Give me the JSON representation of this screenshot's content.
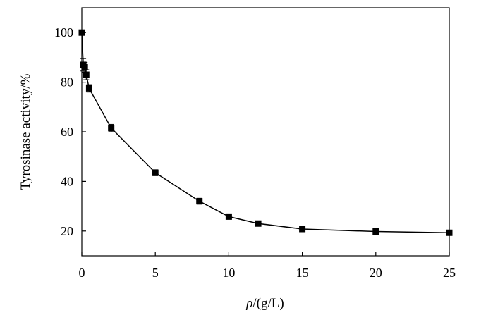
{
  "chart_data": {
    "type": "line",
    "title": "",
    "xlabel_italic": "ρ",
    "xlabel_rest": "/(g/L)",
    "ylabel": "Tyrosinase activity/%",
    "xlim": [
      0,
      25
    ],
    "ylim": [
      10,
      110
    ],
    "xticks": [
      0,
      5,
      10,
      15,
      20,
      25
    ],
    "yticks": [
      20,
      40,
      60,
      80,
      100
    ],
    "grid": false,
    "legend": "none",
    "series": [
      {
        "x": [
          0,
          0.1,
          0.2,
          0.3,
          0.5,
          2,
          5,
          8,
          10,
          12,
          15,
          20,
          25
        ],
        "y": [
          100,
          87,
          86,
          83,
          77.5,
          61.5,
          43.5,
          32,
          25.8,
          23,
          20.8,
          19.8,
          19.3
        ],
        "err": [
          0,
          2.5,
          2,
          2,
          1.5,
          1.5,
          1.2,
          1.2,
          1,
          0.8,
          0.6,
          0.5,
          0.5
        ]
      }
    ],
    "colors": {
      "line": "#000000",
      "marker": "#000000"
    }
  }
}
